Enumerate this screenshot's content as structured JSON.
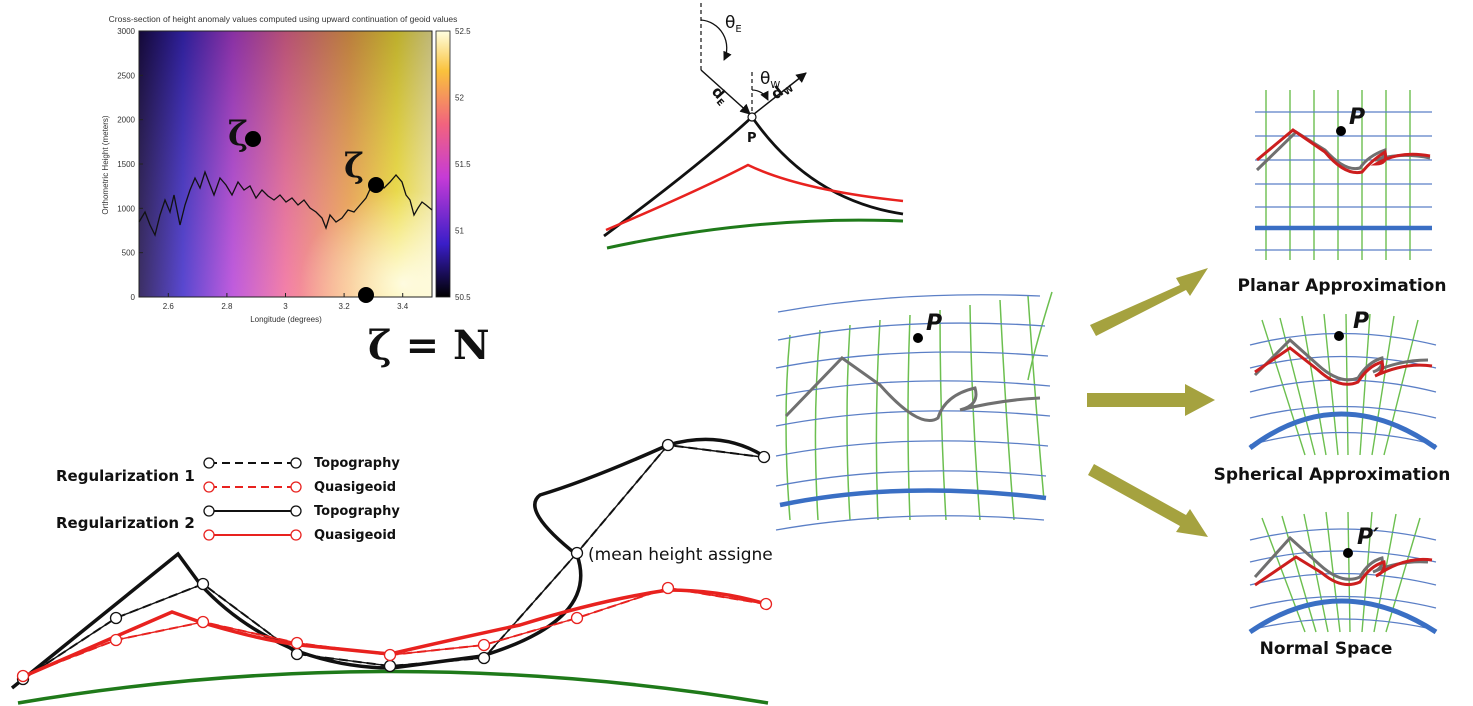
{
  "heatmap": {
    "title": "Cross-section of height anomaly values computed using upward continuation of geoid values",
    "xlabel": "Longitude (degrees)",
    "ylabel": "Orthometric Height (meters)",
    "x_ticks": [
      "2.6",
      "2.8",
      "3",
      "3.2",
      "3.4"
    ],
    "y_ticks": [
      "0",
      "500",
      "1000",
      "1500",
      "2000",
      "2500",
      "3000"
    ],
    "colorbar_ticks": [
      "52.5",
      "52",
      "51.5",
      "51",
      "50.5"
    ],
    "zeta_label_1": "ζ",
    "zeta_label_2": "ζ",
    "equation": "ζ = N"
  },
  "angle_diagram": {
    "theta_e": "θ",
    "theta_e_sub": "E",
    "theta_w": "θ",
    "theta_w_sub": "W",
    "d_e": "d",
    "d_e_sub": "E",
    "d_w": "d",
    "d_w_sub": "W",
    "point": "P"
  },
  "regularization": {
    "group1": "Regularization 1",
    "group2": "Regularization 2",
    "legend": [
      "Topography",
      "Quasigeoid",
      "Topography",
      "Quasigeoid"
    ],
    "annotation": "(mean height assigne"
  },
  "grids": {
    "main_point": "P",
    "planar_point": "P",
    "planar_label": "Planar Approximation",
    "spherical_point": "P",
    "spherical_label": "Spherical Approximation",
    "normal_point": "P′",
    "normal_label": "Normal Space"
  },
  "colors": {
    "topography": "#111111",
    "quasigeoid": "#e8221f",
    "ellipsoid": "#1f7a1a",
    "grid_blue": "#5b7fc6",
    "grid_green": "#6cbf4f",
    "reference_blue": "#3a6fc4",
    "arrow_olive": "#a5a23f",
    "profile_gray": "#707070"
  }
}
